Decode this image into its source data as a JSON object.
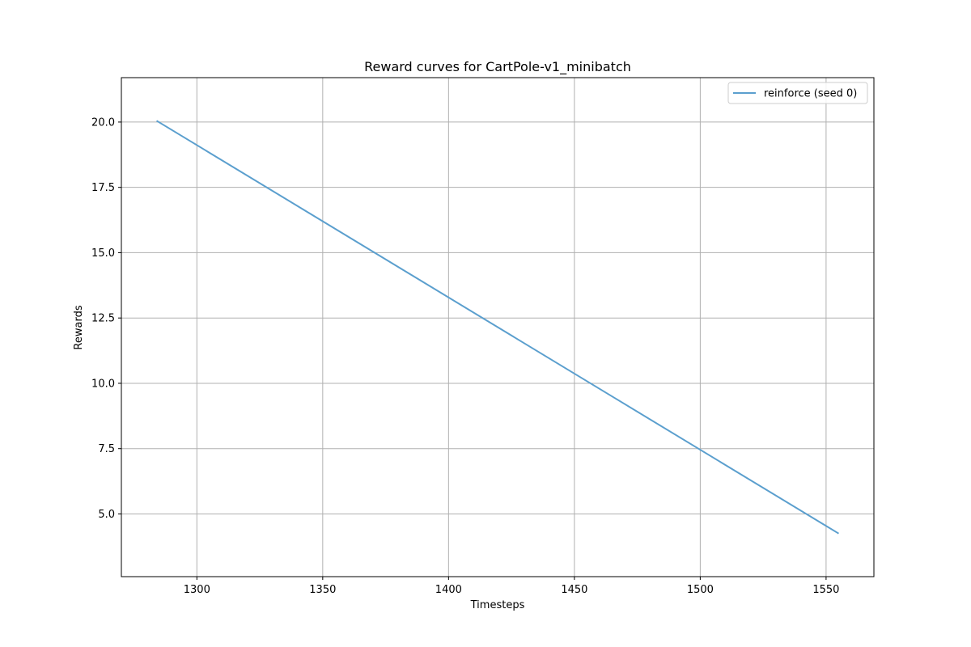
{
  "chart_data": {
    "type": "line",
    "title": "Reward curves for CartPole-v1_minibatch",
    "xlabel": "Timesteps",
    "ylabel": "Rewards",
    "xlim": [
      1270,
      1569
    ],
    "ylim": [
      2.6,
      21.7
    ],
    "xticks": [
      1300,
      1350,
      1400,
      1450,
      1500,
      1550
    ],
    "xtick_labels": [
      "1300",
      "1350",
      "1400",
      "1450",
      "1500",
      "1550"
    ],
    "yticks": [
      5.0,
      7.5,
      10.0,
      12.5,
      15.0,
      17.5,
      20.0
    ],
    "ytick_labels": [
      "5.0",
      "7.5",
      "10.0",
      "12.5",
      "15.0",
      "17.5",
      "20.0"
    ],
    "grid": true,
    "legend_position": "top-right",
    "series": [
      {
        "name": "reinforce (seed 0)",
        "color": "#5b9fce",
        "x": [
          1284,
          1555
        ],
        "y": [
          20.05,
          4.25
        ]
      }
    ]
  }
}
